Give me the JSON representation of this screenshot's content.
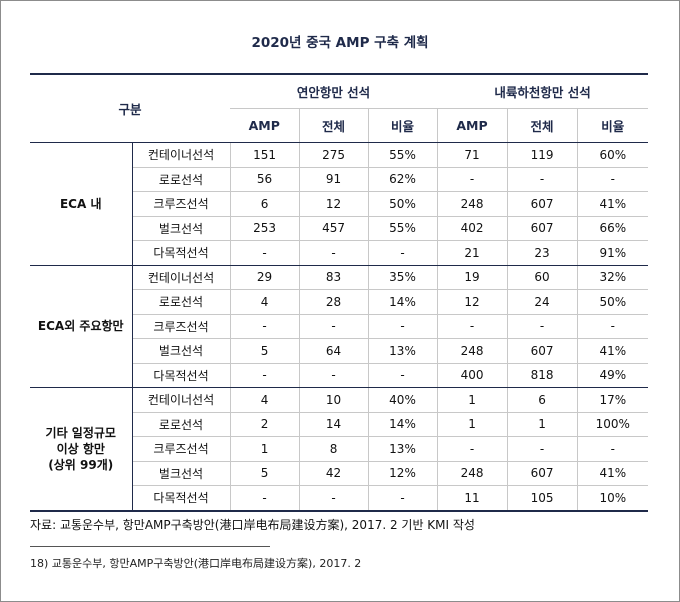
{
  "title": "2020년 중국 AMP 구축 계획",
  "header": {
    "category": "구분",
    "coastal": "연안항만 선석",
    "inland": "내륙하천항만 선석",
    "amp": "AMP",
    "total": "전체",
    "ratio": "비율"
  },
  "groups": [
    {
      "name": "ECA 내",
      "rows": [
        {
          "type": "컨테이너선석",
          "c_amp": "151",
          "c_total": "275",
          "c_ratio": "55%",
          "i_amp": "71",
          "i_total": "119",
          "i_ratio": "60%"
        },
        {
          "type": "로로선석",
          "c_amp": "56",
          "c_total": "91",
          "c_ratio": "62%",
          "i_amp": "-",
          "i_total": "-",
          "i_ratio": "-"
        },
        {
          "type": "크루즈선석",
          "c_amp": "6",
          "c_total": "12",
          "c_ratio": "50%",
          "i_amp": "248",
          "i_total": "607",
          "i_ratio": "41%"
        },
        {
          "type": "벌크선석",
          "c_amp": "253",
          "c_total": "457",
          "c_ratio": "55%",
          "i_amp": "402",
          "i_total": "607",
          "i_ratio": "66%"
        },
        {
          "type": "다목적선석",
          "c_amp": "-",
          "c_total": "-",
          "c_ratio": "-",
          "i_amp": "21",
          "i_total": "23",
          "i_ratio": "91%"
        }
      ]
    },
    {
      "name": "ECA외 주요항만",
      "rows": [
        {
          "type": "컨테이너선석",
          "c_amp": "29",
          "c_total": "83",
          "c_ratio": "35%",
          "i_amp": "19",
          "i_total": "60",
          "i_ratio": "32%"
        },
        {
          "type": "로로선석",
          "c_amp": "4",
          "c_total": "28",
          "c_ratio": "14%",
          "i_amp": "12",
          "i_total": "24",
          "i_ratio": "50%"
        },
        {
          "type": "크루즈선석",
          "c_amp": "-",
          "c_total": "-",
          "c_ratio": "-",
          "i_amp": "-",
          "i_total": "-",
          "i_ratio": "-"
        },
        {
          "type": "벌크선석",
          "c_amp": "5",
          "c_total": "64",
          "c_ratio": "13%",
          "i_amp": "248",
          "i_total": "607",
          "i_ratio": "41%"
        },
        {
          "type": "다목적선석",
          "c_amp": "-",
          "c_total": "-",
          "c_ratio": "-",
          "i_amp": "400",
          "i_total": "818",
          "i_ratio": "49%"
        }
      ]
    },
    {
      "name_lines": [
        "기타 일정규모",
        "이상 항만",
        "(상위 99개)"
      ],
      "rows": [
        {
          "type": "컨테이너선석",
          "c_amp": "4",
          "c_total": "10",
          "c_ratio": "40%",
          "i_amp": "1",
          "i_total": "6",
          "i_ratio": "17%"
        },
        {
          "type": "로로선석",
          "c_amp": "2",
          "c_total": "14",
          "c_ratio": "14%",
          "i_amp": "1",
          "i_total": "1",
          "i_ratio": "100%"
        },
        {
          "type": "크루즈선석",
          "c_amp": "1",
          "c_total": "8",
          "c_ratio": "13%",
          "i_amp": "-",
          "i_total": "-",
          "i_ratio": "-"
        },
        {
          "type": "벌크선석",
          "c_amp": "5",
          "c_total": "42",
          "c_ratio": "12%",
          "i_amp": "248",
          "i_total": "607",
          "i_ratio": "41%"
        },
        {
          "type": "다목적선석",
          "c_amp": "-",
          "c_total": "-",
          "c_ratio": "-",
          "i_amp": "11",
          "i_total": "105",
          "i_ratio": "10%"
        }
      ]
    }
  ],
  "source": "자료: 교통운수부, 항만AMP구축방안(港口岸电布局建设方案), 2017. 2 기반 KMI 작성",
  "footnote": "18)  교통운수부, 항만AMP구축방안(港口岸电布局建设方案), 2017. 2"
}
